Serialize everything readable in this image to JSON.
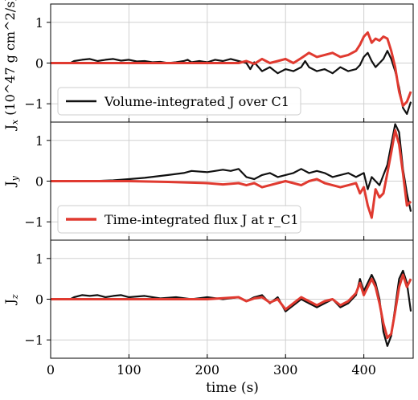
{
  "chart_data": {
    "type": "line",
    "x_axis": {
      "label": "time (s)",
      "ticks": [
        0,
        100,
        200,
        300,
        400
      ],
      "tick_labels": [
        "0",
        "100",
        "200",
        "300",
        "400"
      ],
      "lim": [
        0,
        463
      ]
    },
    "grid": true,
    "colors": {
      "volume": "#111111",
      "flux": "#e03a30"
    },
    "panels": [
      {
        "id": "jx",
        "ylabel": "J_x (10^47 g cm^2/s)",
        "ylabel_main": "J",
        "ylabel_sub": "x",
        "ylabel_unit": "(10^47 g cm^2/s)",
        "ylim": [
          -1.45,
          1.45
        ],
        "ticks": [
          1,
          0,
          -1
        ],
        "tick_labels": [
          "1",
          "0",
          "−1"
        ],
        "legend": {
          "label": "Volume-integrated J over C1",
          "placement": "lower-left",
          "series": "volume"
        },
        "series": [
          {
            "key": "volume",
            "x": [
              0,
              25,
              30,
              40,
              50,
              60,
              70,
              80,
              90,
              100,
              110,
              120,
              130,
              140,
              150,
              160,
              170,
              175,
              180,
              190,
              200,
              210,
              220,
              230,
              240,
              250,
              255,
              260,
              270,
              280,
              290,
              300,
              310,
              320,
              325,
              330,
              340,
              350,
              360,
              370,
              380,
              390,
              395,
              400,
              405,
              410,
              415,
              420,
              425,
              430,
              435,
              440,
              445,
              450,
              455,
              460
            ],
            "y": [
              0,
              0,
              0.05,
              0.08,
              0.1,
              0.05,
              0.08,
              0.1,
              0.06,
              0.08,
              0.04,
              0.05,
              0.02,
              0.03,
              0,
              0.02,
              0.05,
              0.08,
              0.02,
              0.05,
              0.02,
              0.08,
              0.05,
              0.1,
              0.05,
              0,
              -0.15,
              0.02,
              -0.2,
              -0.1,
              -0.25,
              -0.15,
              -0.2,
              -0.1,
              0.05,
              -0.1,
              -0.2,
              -0.15,
              -0.25,
              -0.1,
              -0.2,
              -0.15,
              -0.05,
              0.15,
              0.25,
              0.05,
              -0.1,
              0,
              0.1,
              0.3,
              0.1,
              -0.2,
              -0.6,
              -1.1,
              -1.25,
              -0.95
            ]
          },
          {
            "key": "flux",
            "x": [
              0,
              50,
              100,
              150,
              200,
              240,
              250,
              260,
              270,
              280,
              290,
              300,
              310,
              320,
              330,
              340,
              350,
              360,
              370,
              380,
              390,
              395,
              400,
              405,
              410,
              415,
              420,
              425,
              430,
              435,
              440,
              445,
              450,
              455,
              460
            ],
            "y": [
              0,
              0,
              0,
              0,
              0,
              0,
              0.05,
              -0.02,
              0.1,
              0,
              0.05,
              0.1,
              0,
              0.12,
              0.25,
              0.15,
              0.2,
              0.25,
              0.15,
              0.2,
              0.3,
              0.45,
              0.65,
              0.75,
              0.5,
              0.6,
              0.55,
              0.65,
              0.6,
              0.3,
              -0.1,
              -0.7,
              -1.05,
              -0.95,
              -0.7
            ]
          }
        ]
      },
      {
        "id": "jy",
        "ylabel": "J_y",
        "ylabel_main": "J",
        "ylabel_sub": "y",
        "ylabel_unit": "",
        "ylim": [
          -1.45,
          1.45
        ],
        "ticks": [
          1,
          0,
          -1
        ],
        "tick_labels": [
          "1",
          "0",
          "−1"
        ],
        "legend": {
          "label": "Time-integrated flux J at r_C1",
          "placement": "lower-left",
          "series": "flux"
        },
        "series": [
          {
            "key": "volume",
            "x": [
              0,
              50,
              80,
              100,
              120,
              150,
              170,
              180,
              200,
              220,
              230,
              240,
              250,
              260,
              270,
              280,
              290,
              300,
              310,
              320,
              330,
              340,
              350,
              360,
              370,
              380,
              390,
              400,
              405,
              410,
              415,
              420,
              425,
              430,
              435,
              440,
              445,
              450,
              455,
              460
            ],
            "y": [
              0,
              0,
              0.02,
              0.05,
              0.08,
              0.15,
              0.2,
              0.25,
              0.22,
              0.28,
              0.25,
              0.3,
              0.1,
              0.05,
              0.15,
              0.2,
              0.1,
              0.15,
              0.2,
              0.3,
              0.2,
              0.25,
              0.2,
              0.1,
              0.15,
              0.2,
              0.1,
              0.2,
              -0.2,
              0.1,
              0,
              -0.1,
              0.15,
              0.4,
              0.9,
              1.4,
              1.2,
              0.3,
              -0.3,
              -0.75
            ]
          },
          {
            "key": "flux",
            "x": [
              0,
              100,
              150,
              200,
              220,
              240,
              250,
              260,
              270,
              280,
              290,
              300,
              310,
              320,
              330,
              340,
              350,
              360,
              370,
              380,
              390,
              395,
              400,
              405,
              410,
              415,
              420,
              425,
              430,
              435,
              440,
              445,
              450,
              455,
              460
            ],
            "y": [
              0,
              0,
              -0.02,
              -0.05,
              -0.08,
              -0.05,
              -0.1,
              -0.05,
              -0.15,
              -0.1,
              -0.05,
              0,
              -0.05,
              -0.1,
              0,
              0.05,
              -0.05,
              -0.1,
              -0.15,
              -0.1,
              -0.05,
              -0.3,
              -0.15,
              -0.6,
              -0.9,
              -0.2,
              -0.4,
              -0.3,
              0.2,
              0.7,
              1.25,
              0.9,
              0.2,
              -0.6,
              -0.5
            ]
          }
        ]
      },
      {
        "id": "jz",
        "ylabel": "J_z",
        "ylabel_main": "J",
        "ylabel_sub": "z",
        "ylabel_unit": "",
        "ylim": [
          -1.45,
          1.45
        ],
        "ticks": [
          1,
          0,
          -1
        ],
        "tick_labels": [
          "1",
          "0",
          "−1"
        ],
        "legend": null,
        "series": [
          {
            "key": "volume",
            "x": [
              0,
              25,
              30,
              40,
              50,
              60,
              70,
              80,
              90,
              100,
              120,
              140,
              160,
              180,
              200,
              220,
              240,
              250,
              260,
              270,
              280,
              290,
              300,
              310,
              320,
              330,
              340,
              350,
              360,
              370,
              380,
              390,
              395,
              400,
              410,
              415,
              420,
              425,
              430,
              435,
              440,
              445,
              450,
              455,
              460
            ],
            "y": [
              0,
              0,
              0.05,
              0.1,
              0.08,
              0.1,
              0.05,
              0.08,
              0.1,
              0.05,
              0.08,
              0.02,
              0.05,
              0,
              0.05,
              0,
              0.05,
              -0.05,
              0.05,
              0.1,
              -0.1,
              0.05,
              -0.3,
              -0.15,
              0,
              -0.1,
              -0.2,
              -0.1,
              0,
              -0.2,
              -0.1,
              0.1,
              0.5,
              0.2,
              0.6,
              0.4,
              0,
              -0.8,
              -1.15,
              -0.9,
              -0.2,
              0.5,
              0.7,
              0.4,
              -0.3
            ]
          },
          {
            "key": "flux",
            "x": [
              0,
              50,
              100,
              150,
              200,
              240,
              250,
              260,
              270,
              280,
              290,
              300,
              310,
              320,
              330,
              340,
              350,
              360,
              370,
              380,
              390,
              395,
              400,
              410,
              415,
              420,
              425,
              430,
              435,
              440,
              445,
              450,
              455,
              460
            ],
            "y": [
              0,
              0,
              0,
              0,
              0,
              0.05,
              -0.05,
              0.02,
              0.05,
              -0.08,
              0,
              -0.25,
              -0.1,
              0.05,
              -0.05,
              -0.15,
              -0.05,
              0,
              -0.15,
              -0.05,
              0.15,
              0.4,
              0.1,
              0.5,
              0.3,
              -0.1,
              -0.6,
              -0.95,
              -0.85,
              -0.3,
              0.3,
              0.6,
              0.3,
              0.5
            ]
          }
        ]
      }
    ]
  }
}
